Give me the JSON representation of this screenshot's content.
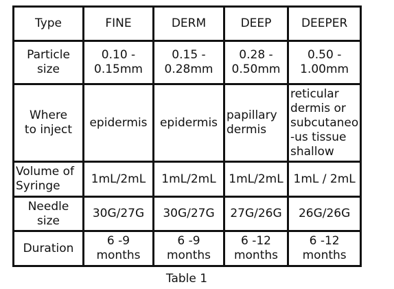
{
  "table": {
    "rows": [
      [
        [
          "Type"
        ],
        [
          "FINE"
        ],
        [
          "DERM"
        ],
        [
          "DEEP"
        ],
        [
          "DEEPER"
        ]
      ],
      [
        [
          "Particle",
          "size"
        ],
        [
          "0.10 -",
          "0.15mm"
        ],
        [
          "0.15 -",
          "0.28mm"
        ],
        [
          "0.28 -",
          "0.50mm"
        ],
        [
          "0.50 -",
          "1.00mm"
        ]
      ],
      [
        [
          "Where",
          "to inject"
        ],
        [
          "epidermis"
        ],
        [
          "epidermis"
        ],
        [
          "papillary",
          "dermis"
        ],
        [
          "reticular",
          "dermis or",
          "subcutaneo",
          "-us tissue",
          "shallow"
        ]
      ],
      [
        [
          "Volume of",
          "Syringe"
        ],
        [
          "1mL/2mL"
        ],
        [
          "1mL/2mL"
        ],
        [
          "1mL/2mL"
        ],
        [
          "1mL / 2mL"
        ]
      ],
      [
        [
          "Needle",
          "size"
        ],
        [
          "30G/27G"
        ],
        [
          "30G/27G"
        ],
        [
          "27G/26G"
        ],
        [
          "26G/26G"
        ]
      ],
      [
        [
          "Duration"
        ],
        [
          "6 -9",
          "months"
        ],
        [
          "6 -9",
          "months"
        ],
        [
          "6 -12",
          "months"
        ],
        [
          "6 -12",
          "months"
        ]
      ]
    ]
  },
  "caption": "Table 1"
}
